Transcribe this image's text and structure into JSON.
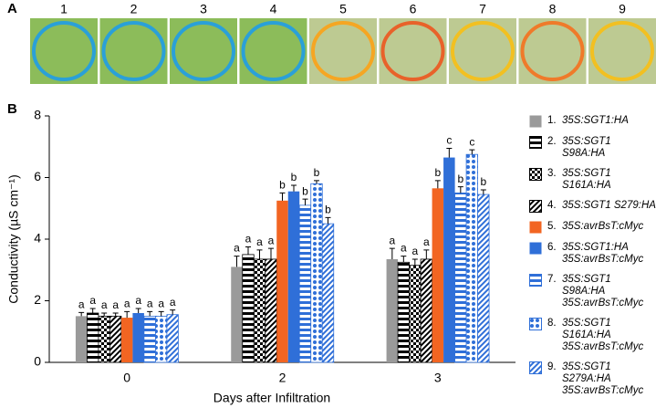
{
  "panel_a": {
    "label": "A",
    "leaves": [
      "1",
      "2",
      "3",
      "4",
      "5",
      "6",
      "7",
      "8",
      "9"
    ],
    "circle_colors": [
      "#2aa0d8",
      "#2aa0d8",
      "#2aa0d8",
      "#2aa0d8",
      "#f5a623",
      "#e8622a",
      "#f2c021",
      "#ef7a2a",
      "#f2c021"
    ]
  },
  "chart_data": {
    "type": "bar",
    "panel_label": "B",
    "ylabel": "Conductivity (µS cm⁻¹)",
    "xlabel": "Days after Infiltration",
    "categories": [
      "0",
      "2",
      "3"
    ],
    "ylim": [
      0,
      8
    ],
    "yticks": [
      0,
      2,
      4,
      6,
      8
    ],
    "series": [
      {
        "number": "1.",
        "name": "35S:SGT1:HA",
        "color": "#9a9a9a",
        "pattern": "solid",
        "values": [
          1.5,
          3.1,
          3.35
        ],
        "errors": [
          0.12,
          0.35,
          0.35
        ],
        "significance": [
          "a",
          "a",
          "a"
        ]
      },
      {
        "number": "2.",
        "name": "35S:SGT1 S98A:HA",
        "color": "#000000",
        "pattern": "hlines",
        "values": [
          1.6,
          3.5,
          3.25
        ],
        "errors": [
          0.15,
          0.25,
          0.2
        ],
        "significance": [
          "a",
          "a",
          "a"
        ]
      },
      {
        "number": "3.",
        "name": "35S:SGT1 S161A:HA",
        "color": "#000000",
        "pattern": "checker",
        "values": [
          1.5,
          3.35,
          3.15
        ],
        "errors": [
          0.1,
          0.3,
          0.2
        ],
        "significance": [
          "a",
          "a",
          "a"
        ]
      },
      {
        "number": "4.",
        "name": "35S:SGT1 S279:HA",
        "color": "#000000",
        "pattern": "diagonal",
        "values": [
          1.5,
          3.35,
          3.35
        ],
        "errors": [
          0.1,
          0.35,
          0.3
        ],
        "significance": [
          "a",
          "a",
          "a"
        ]
      },
      {
        "number": "5.",
        "name": "35S:avrBsT:cMyc",
        "color": "#f26522",
        "pattern": "solid",
        "values": [
          1.45,
          5.25,
          5.65
        ],
        "errors": [
          0.2,
          0.25,
          0.25
        ],
        "significance": [
          "a",
          "b",
          "b"
        ]
      },
      {
        "number": "6.",
        "name": "35S:SGT1:HA 35S:avrBsT:cMyc",
        "color": "#2f6fd8",
        "pattern": "solid",
        "values": [
          1.6,
          5.55,
          6.65
        ],
        "errors": [
          0.15,
          0.2,
          0.3
        ],
        "significance": [
          "a",
          "b",
          "c"
        ]
      },
      {
        "number": "7.",
        "name": "35S:SGT1 S98A:HA 35S:avrBsT:cMyc",
        "color": "#2f6fd8",
        "pattern": "hlines",
        "values": [
          1.5,
          5.1,
          5.5
        ],
        "errors": [
          0.15,
          0.2,
          0.2
        ],
        "significance": [
          "a",
          "b",
          "b"
        ]
      },
      {
        "number": "8.",
        "name": "35S:SGT1 S161A:HA 35S:avrBsT:cMyc",
        "color": "#2f6fd8",
        "pattern": "dots",
        "values": [
          1.5,
          5.8,
          6.75
        ],
        "errors": [
          0.15,
          0.1,
          0.15
        ],
        "significance": [
          "a",
          "b",
          "c"
        ]
      },
      {
        "number": "9.",
        "name": "35S:SGT1 S279A:HA 35S:avrBsT:cMyc",
        "color": "#2f6fd8",
        "pattern": "diagonal",
        "values": [
          1.55,
          4.5,
          5.45
        ],
        "errors": [
          0.15,
          0.2,
          0.15
        ],
        "significance": [
          "a",
          "b",
          "b"
        ]
      }
    ]
  }
}
